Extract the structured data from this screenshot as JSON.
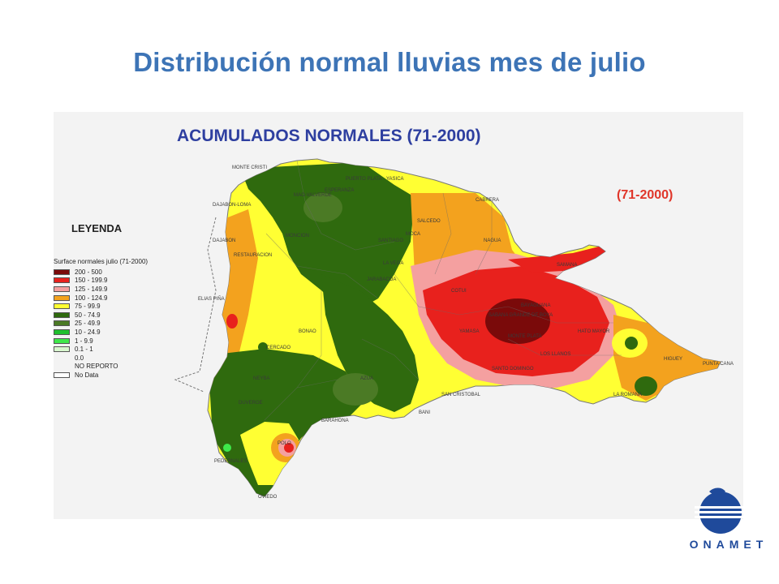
{
  "slide": {
    "title": "Distribución normal lluvias mes de julio"
  },
  "map": {
    "heading": "ACUMULADOS NORMALES (71-2000)",
    "period_note": "(71-2000)",
    "places": [
      "MONTE CRISTI",
      "DAJABON-LOMA",
      "DAJABON",
      "RESTAURACION",
      "ELIAS PIÑA",
      "CERCADO",
      "MAO-VALVERDE",
      "MONCION",
      "SANTIAGO",
      "LA VEGA",
      "JARABACOA",
      "SALCEDO",
      "MOCA",
      "NAGUA",
      "SAMANA",
      "BONAO",
      "SAN CRISTOBAL",
      "BANI",
      "AZUA",
      "BARAHONA",
      "PEDERNALES",
      "OVIEDO",
      "POLO",
      "HIGUEY",
      "PUNTA CANA",
      "LOS LLANOS",
      "SABANA GRANDE DE BOYA",
      "MONTE PLATA",
      "COTUI",
      "YAMASA",
      "HATO MAYOR",
      "BAYAGUANA",
      "SANTO DOMINGO",
      "NEYBA",
      "DUVERGE",
      "LA ROMANA",
      "CABRERA",
      "PUERTO PLATA",
      "ESPERANZA",
      "YASICA"
    ]
  },
  "legend": {
    "title": "LEYENDA",
    "subtitle": "Surface normales julio (71-2000)",
    "items": [
      {
        "label": "200 - 500",
        "color": "#7a0a0a"
      },
      {
        "label": "150 - 199.9",
        "color": "#e8211d"
      },
      {
        "label": "125 - 149.9",
        "color": "#f4a0a0"
      },
      {
        "label": "100 - 124.9",
        "color": "#f3a21e"
      },
      {
        "label": "75 - 99.9",
        "color": "#ffff33"
      },
      {
        "label": "50 - 74.9",
        "color": "#2f6a0e"
      },
      {
        "label": "25 - 49.9",
        "color": "#4b7a25"
      },
      {
        "label": "10 - 24.9",
        "color": "#1fbf2e"
      },
      {
        "label": "1 - 9.9",
        "color": "#3ee84a"
      },
      {
        "label": "0.1 - 1",
        "color": "#d8f7cf"
      },
      {
        "label": "0.0",
        "color": ""
      },
      {
        "label": "NO REPORTO",
        "color": ""
      },
      {
        "label": "No Data",
        "color": "#ffffff"
      }
    ]
  },
  "logo": {
    "text": "ONAMET",
    "icon": "onamet-logo-icon"
  }
}
